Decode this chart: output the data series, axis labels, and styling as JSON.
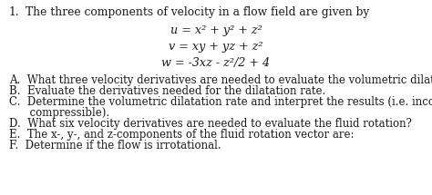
{
  "title_number": "1.",
  "title_text": "The three components of velocity in a flow field are given by",
  "equation1": "u = x² + y² + z²",
  "equation2": "v = xy + yz + z²",
  "equation3": "w = -3xz - z²/2 + 4",
  "item_A": "A.  What three velocity derivatives are needed to evaluate the volumetric dilatation?",
  "item_B": "B.  Evaluate the derivatives needed for the dilatation rate.",
  "item_C1": "C.  Determine the volumetric dilatation rate and interpret the results (i.e. incompressible or",
  "item_C2": "      compressible).",
  "item_D": "D.  What six velocity derivatives are needed to evaluate the fluid rotation?",
  "item_E": "E.  The x-, y-, and z-components of the fluid rotation vector are:",
  "item_F": "F.  Determine if the flow is irrotational.",
  "bg_color": "#ffffff",
  "text_color": "#1a1a1a",
  "font_size_title": 8.8,
  "font_size_eq": 9.2,
  "font_size_items": 8.5
}
